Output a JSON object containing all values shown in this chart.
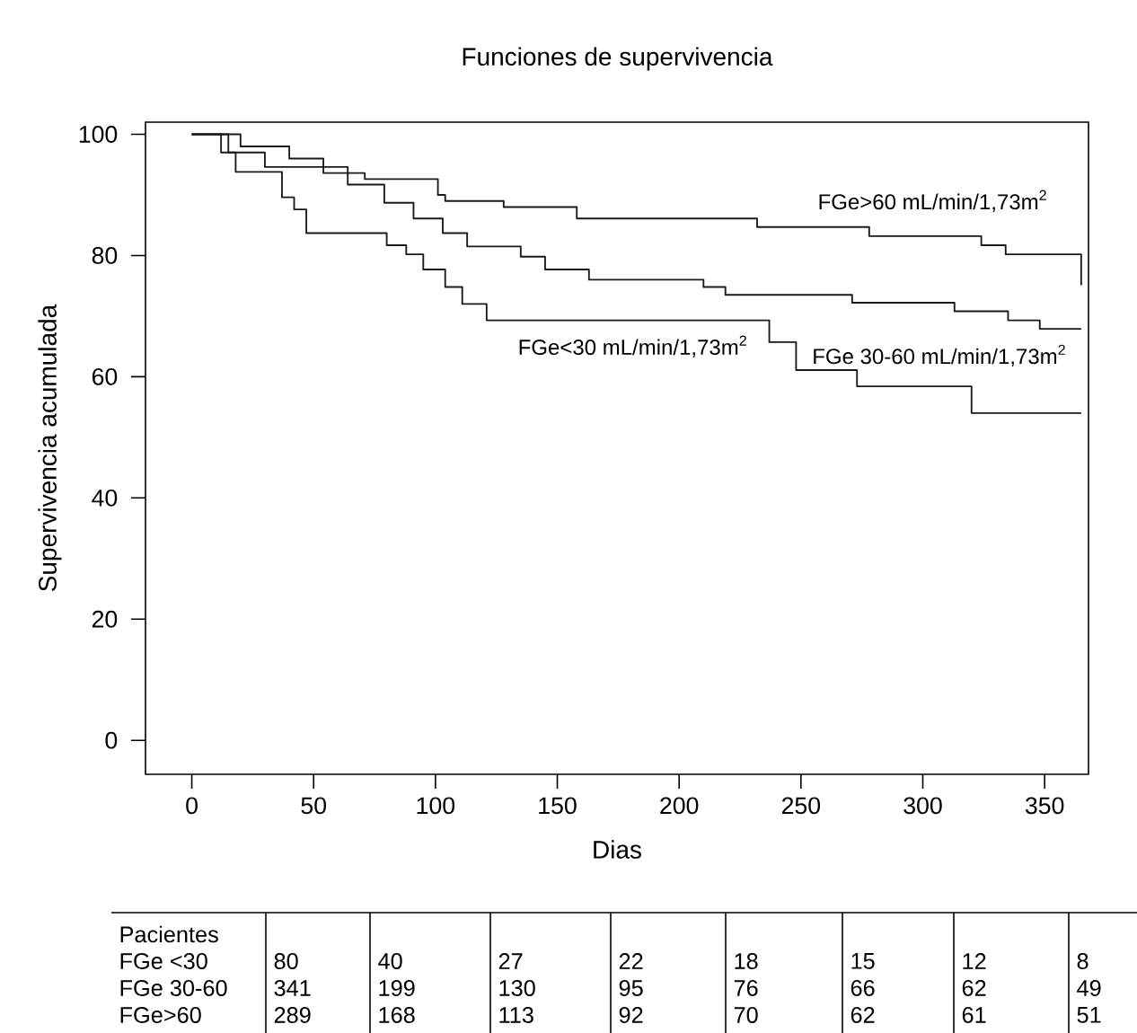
{
  "chart_data": {
    "type": "step",
    "title": "Funciones de supervivencia",
    "xlabel": "Dias",
    "ylabel": "Supervivencia acumulada",
    "xlim": [
      -19,
      368
    ],
    "ylim": [
      -5.6,
      102
    ],
    "xticks": [
      0,
      50,
      100,
      150,
      200,
      250,
      300,
      350
    ],
    "yticks": [
      0,
      20,
      40,
      60,
      80,
      100
    ],
    "grid": false,
    "legend": false,
    "line_style": "solid",
    "series": [
      {
        "name": "FGe>60 mL/min/1,73m$^{2}$",
        "color": "#1a1a1a",
        "x": [
          0,
          20,
          40,
          54,
          71,
          101,
          104,
          128,
          158,
          232,
          278,
          324,
          334,
          365
        ],
        "values": [
          100,
          98,
          96,
          93.6,
          92.6,
          90,
          89,
          88,
          86.1,
          84.7,
          83.2,
          81.7,
          80.2,
          75.1
        ]
      },
      {
        "name": "FGe 30-60 mL/min/1,73m$^{2}$",
        "color": "#1a1a1a",
        "x": [
          0,
          15,
          30,
          64,
          79,
          91,
          103,
          113,
          135,
          145,
          163,
          210,
          219,
          271,
          313,
          335,
          348,
          365
        ],
        "values": [
          100,
          97,
          94.6,
          91.7,
          88.7,
          86.1,
          83.7,
          81.5,
          79.8,
          77.7,
          76,
          74.8,
          73.5,
          72.2,
          70.8,
          69.3,
          67.9,
          67.9
        ]
      },
      {
        "name": "FGe<30 mL/min/1,73m$^{2}$",
        "color": "#1a1a1a",
        "x": [
          0,
          12,
          18,
          37,
          42,
          47,
          80,
          88,
          95,
          104,
          111,
          121,
          237,
          248,
          273,
          320,
          365
        ],
        "values": [
          100,
          97,
          93.8,
          89.6,
          87.6,
          83.7,
          81.7,
          80.2,
          77.7,
          74.8,
          72,
          69.3,
          65.7,
          61.1,
          58.4,
          54,
          54
        ]
      }
    ],
    "annotations": [
      "Pacientes",
      "FGe <30",
      "80",
      "40",
      "27",
      "22",
      "18",
      "15",
      "12",
      "8",
      "FGe 30-60",
      "341",
      "199",
      "130",
      "95",
      "76",
      "66",
      "62",
      "49",
      "FGe>60",
      "289",
      "168",
      "113",
      "92",
      "70",
      "62",
      "61",
      "51"
    ]
  }
}
